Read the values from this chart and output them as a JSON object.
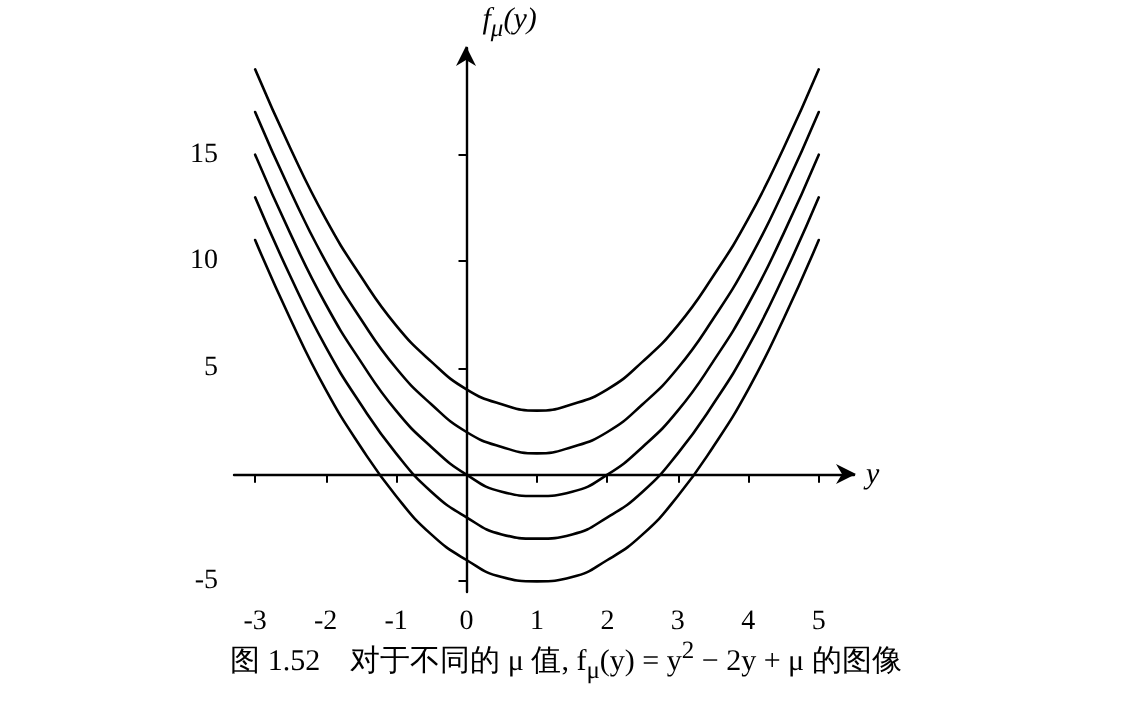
{
  "chart_data": {
    "type": "line",
    "xlabel": "y",
    "ylabel": "f$_{μ}$(y)",
    "annotations": [
      "图 1.52　对于不同的 μ 值, f$_{μ}$(y) = y$^{2}$ − 2y + μ 的图像"
    ],
    "x": [
      -3,
      -2.5,
      -2,
      -1.5,
      -1,
      -0.5,
      0,
      0.5,
      1,
      1.5,
      2,
      2.5,
      3,
      3.5,
      4,
      4.5,
      5
    ],
    "series": [
      {
        "color": "#000000",
        "values": [
          19,
          15.3,
          12,
          9.3,
          7,
          5.3,
          4,
          3.3,
          3,
          3.3,
          4,
          5.3,
          7,
          9.3,
          12,
          15.3,
          19
        ]
      },
      {
        "color": "#000000",
        "values": [
          17,
          13.3,
          10,
          7.3,
          5,
          3.3,
          2,
          1.3,
          1,
          1.3,
          2,
          3.3,
          5,
          7.3,
          10,
          13.3,
          17
        ]
      },
      {
        "color": "#000000",
        "values": [
          15,
          11.3,
          8,
          5.3,
          3,
          1.3,
          0,
          -0.8,
          -1,
          -0.8,
          0,
          1.3,
          3,
          5.3,
          8,
          11.3,
          15
        ]
      },
      {
        "color": "#000000",
        "values": [
          13,
          9.3,
          6,
          3.3,
          1,
          -0.8,
          -2,
          -2.8,
          -3,
          -2.8,
          -2,
          -0.8,
          1,
          3.3,
          6,
          9.3,
          13
        ]
      },
      {
        "color": "#000000",
        "values": [
          11,
          7.3,
          4,
          1.3,
          -1,
          -2.8,
          -4,
          -4.8,
          -5,
          -4.8,
          -4,
          -2.8,
          -1,
          1.3,
          4,
          7.3,
          11
        ]
      }
    ],
    "xlim": [
      -3.3,
      5.5
    ],
    "ylim": [
      -5.5,
      20
    ],
    "xticks": [
      -3,
      -2,
      -1,
      0,
      1,
      2,
      3,
      4,
      5
    ],
    "yticks": [
      -5,
      5,
      10,
      15
    ],
    "marker": "none",
    "line_style": "solid"
  }
}
